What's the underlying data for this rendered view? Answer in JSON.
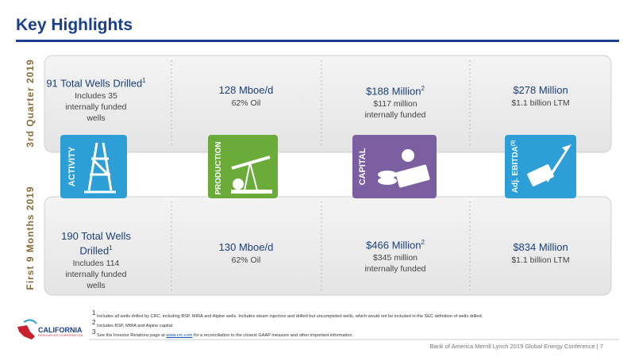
{
  "header": {
    "title": "Key Highlights"
  },
  "sections": [
    {
      "label": "3rd Quarter 2019",
      "items": [
        {
          "headline": "91 Total Wells Drilled",
          "sup": "1",
          "detail": "Includes 35 internally funded wells"
        },
        {
          "headline": "128 Mboe/d",
          "detail": "62% Oil"
        },
        {
          "headline": "$188 Million",
          "sup": "2",
          "detail": "$117 million internally funded"
        },
        {
          "headline": "$278 Million",
          "detail": "$1.1 billion LTM"
        }
      ]
    },
    {
      "label": "First 9 Months 2019",
      "items": [
        {
          "headline": "190 Total Wells Drilled",
          "sup": "1",
          "detail": "Includes 114 internally funded wells"
        },
        {
          "headline": "130 Mboe/d",
          "detail": "62% Oil"
        },
        {
          "headline": "$466 Million",
          "sup": "2",
          "detail": "$345 million internally funded"
        },
        {
          "headline": "$834 Million",
          "detail": "$1.1 billion LTM"
        }
      ]
    }
  ],
  "icons": [
    {
      "label": "ACTIVITY"
    },
    {
      "label": "PRODUCTION"
    },
    {
      "label": "CAPITAL"
    },
    {
      "label": "Adj. EBITDA",
      "sup": "(3)"
    }
  ],
  "footnotes": [
    {
      "num": "1",
      "text": "Includes all wells drilled by CRC, including BSP, MIRA and Alpine wells. Includes steam injectors and drilled but uncompleted wells, which would not be included in the SEC definition of wells drilled."
    },
    {
      "num": "2",
      "text": "Includes BSP, MIRA and Alpine capital."
    },
    {
      "num": "3",
      "text": "See the Investor Relations page at",
      "link": "www.crc.com",
      "text_after": "for a reconciliation to the closest GAAP measure and other important information."
    }
  ],
  "logo": {
    "name": "CALIFORNIA",
    "tagline": "RESOURCES CORPORATION"
  },
  "footer": {
    "text": "Bank of America Merrill Lynch 2019 Global Energy Conference | 7"
  }
}
